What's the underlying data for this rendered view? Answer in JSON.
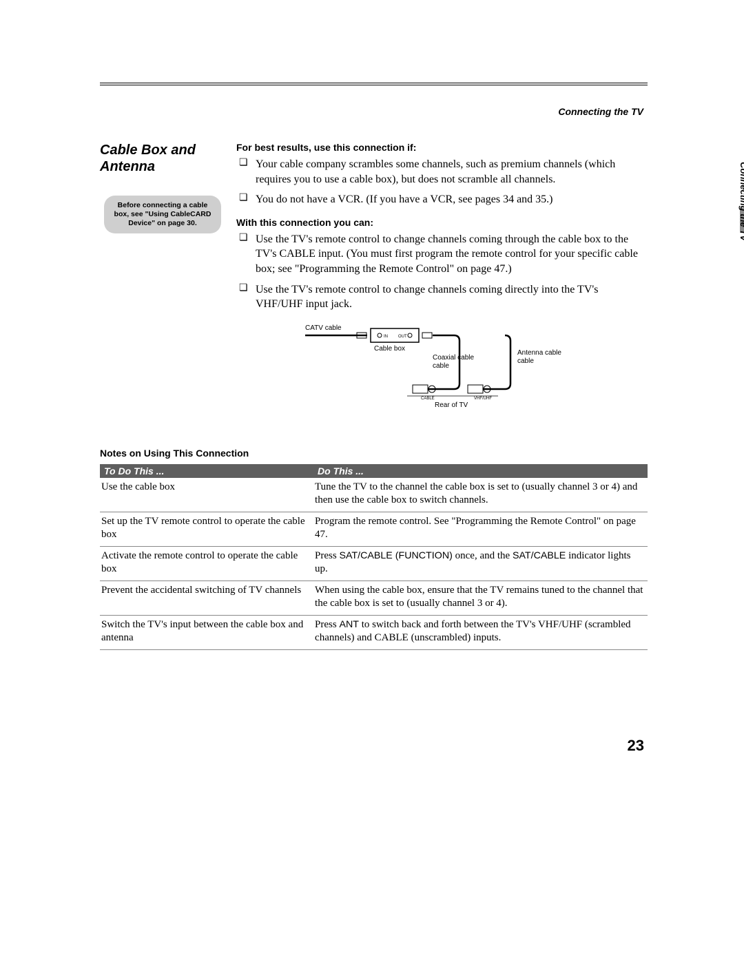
{
  "header": {
    "running_head": "Connecting the TV"
  },
  "section": {
    "title": "Cable Box and Antenna",
    "callout": "Before connecting a cable box, see \"Using CableCARD Device\" on page 30."
  },
  "content": {
    "best_results_head": "For best results, use this connection if:",
    "best_results": [
      "Your cable company scrambles some channels, such as premium channels (which requires you to use a cable box), but does not scramble all channels.",
      "You do not have a VCR. (If you have a VCR, see pages 34 and 35.)"
    ],
    "with_conn_head": "With this connection you can:",
    "with_conn": [
      "Use the TV's remote control to change channels coming through the cable box to the TV's CABLE input. (You must first program the remote control for your specific cable box; see \"Programming the Remote Control\" on page 47.)",
      "Use the TV's remote control to change channels coming directly into the TV's VHF/UHF input jack."
    ]
  },
  "diagram": {
    "labels": {
      "catv": "CATV cable",
      "cablebox": "Cable box",
      "coax": "Coaxial cable",
      "ant": "Antenna cable",
      "rear": "Rear of TV",
      "port_cable": "CABLE",
      "port_vhf": "VHF/UHF",
      "port_in": "IN",
      "port_out": "OUT"
    },
    "colors": {
      "line": "#000000",
      "box_fill": "#ffffff",
      "text": "#000000"
    },
    "font_size": 10
  },
  "notes": {
    "head": "Notes on Using This Connection",
    "col1": "To Do This ...",
    "col2": "Do This ...",
    "rows": [
      {
        "a": "Use the cable box",
        "b": "Tune the TV to the channel the cable box is set to (usually channel 3 or 4) and then use the cable box to switch channels."
      },
      {
        "a": "Set up the TV remote control to operate the cable box",
        "b": "Program the remote control. See \"Programming the Remote Control\" on page 47."
      },
      {
        "a": "Activate the remote control to operate the cable box",
        "b": "Press <span class='sans'>SAT/CABLE (FUNCTION)</span> once, and the <span class='sans'>SAT/CABLE</span> indicator lights up."
      },
      {
        "a": "Prevent the accidental switching of TV channels",
        "b": "When using the cable box, ensure that the TV remains tuned to the channel that the cable box is set to (usually channel 3 or 4)."
      },
      {
        "a": "Switch the TV's input between the cable box and antenna",
        "b": "Press <span class='sans'>ANT</span> to switch back and forth between the TV's VHF/UHF (scrambled channels) and CABLE (unscrambled) inputs."
      }
    ]
  },
  "side": {
    "label": "Connecting the TV"
  },
  "page_number": "23"
}
